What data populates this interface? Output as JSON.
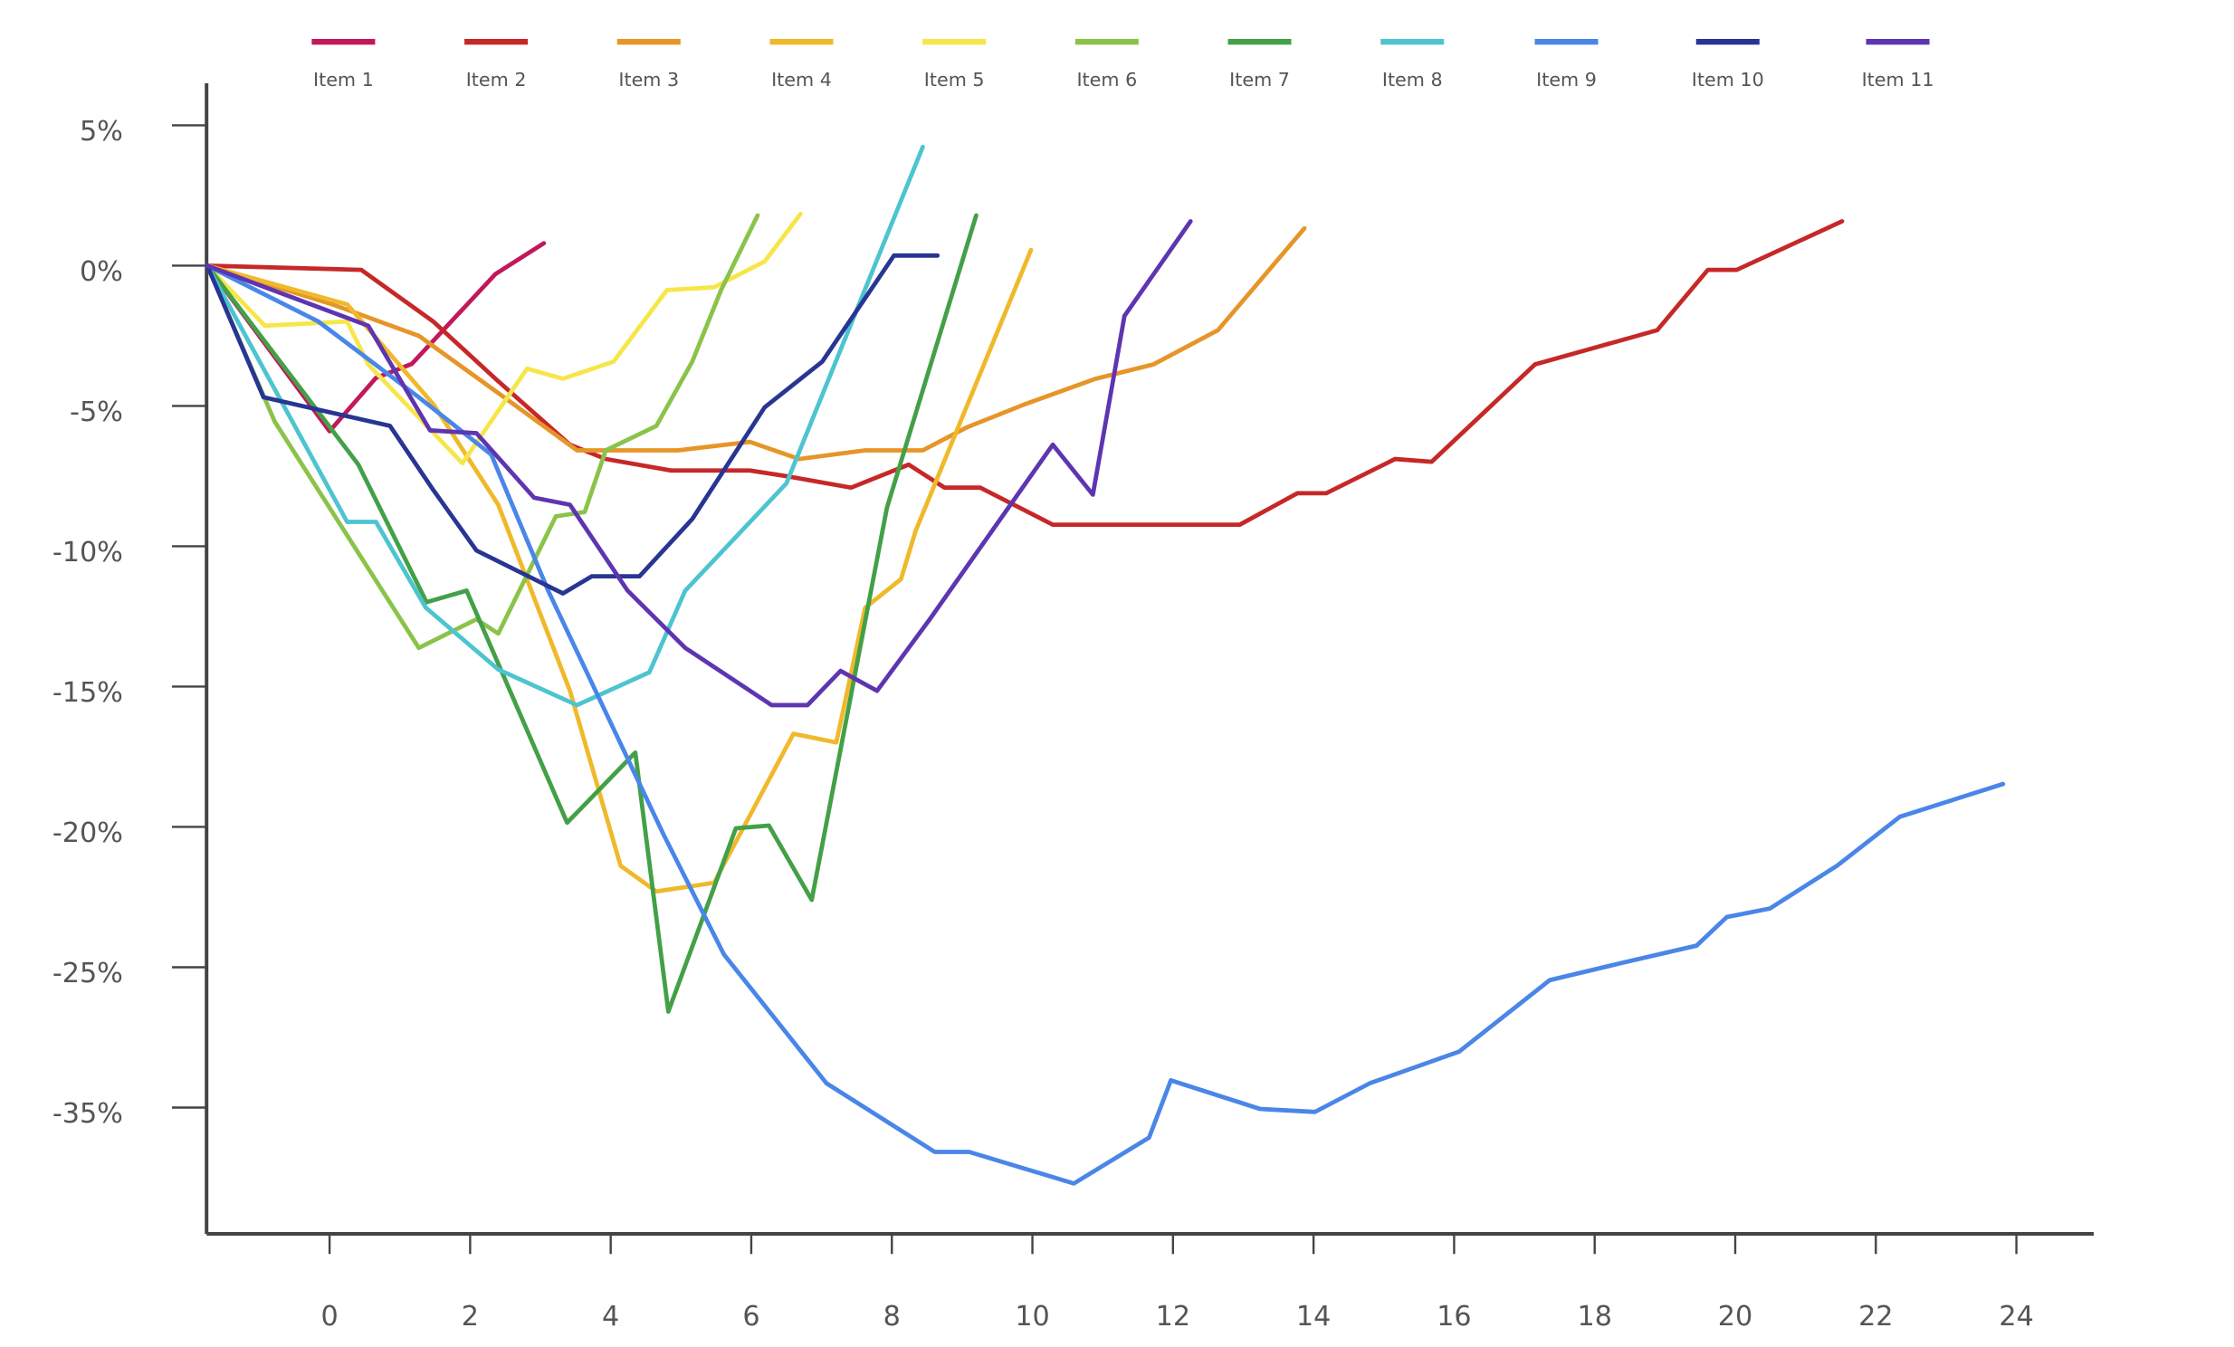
{
  "chart_data": {
    "type": "line",
    "xlim": [
      -1.75,
      25.1
    ],
    "xticks": [
      0,
      2,
      4,
      6,
      8,
      10,
      12,
      14,
      16,
      18,
      20,
      22,
      24
    ],
    "ylim": [
      -44,
      6.5
    ],
    "yticks": [
      {
        "value": 5,
        "label": "5%"
      },
      {
        "value": 0,
        "label": "0%"
      },
      {
        "value": -5,
        "label": "-5%"
      },
      {
        "value": -10,
        "label": "-10%"
      },
      {
        "value": -15,
        "label": "-15%"
      },
      {
        "value": -20,
        "label": "-20%"
      },
      {
        "value": -25,
        "label": "-25%"
      },
      {
        "value": -35,
        "label": "-35%"
      }
    ],
    "grid": false,
    "legend": "top",
    "series": [
      {
        "name": "Item 1",
        "color": "#c2185b",
        "x": [
          -1.74,
          0,
          0.66,
          1.17,
          2.36,
          3.05
        ],
        "values": [
          0,
          -5.9,
          -4.0,
          -3.5,
          -0.3,
          0.8
        ]
      },
      {
        "name": "Item 2",
        "color": "#c62828",
        "x": [
          -1.74,
          0.45,
          1.48,
          2.36,
          3.42,
          3.93,
          4.86,
          5.98,
          6.5,
          7.42,
          8.24,
          8.75,
          9.26,
          10.29,
          12.95,
          13.77,
          14.18,
          15.16,
          15.68,
          17.15,
          18.89,
          19.61,
          20.02,
          21.52
        ],
        "values": [
          0,
          -0.15,
          -2.0,
          -4.03,
          -6.38,
          -6.89,
          -7.3,
          -7.3,
          -7.5,
          -7.91,
          -7.09,
          -7.91,
          -7.91,
          -9.23,
          -9.23,
          -8.11,
          -8.11,
          -6.89,
          -6.99,
          -3.52,
          -2.3,
          -0.15,
          -0.15,
          1.58
        ]
      },
      {
        "name": "Item 3",
        "color": "#e69528",
        "x": [
          -1.74,
          0.04,
          1.27,
          2.4,
          3.52,
          4.96,
          5.98,
          6.68,
          7.62,
          8.44,
          9.06,
          9.88,
          10.9,
          11.72,
          12.64,
          13.87
        ],
        "values": [
          0,
          -1.38,
          -2.5,
          -4.54,
          -6.58,
          -6.58,
          -6.28,
          -6.89,
          -6.58,
          -6.58,
          -5.77,
          -4.95,
          -4.03,
          -3.52,
          -2.3,
          1.33
        ]
      },
      {
        "name": "Item 4",
        "color": "#f0b92b",
        "x": [
          -1.74,
          0.25,
          1.48,
          2.4,
          3.42,
          4.14,
          4.65,
          5.47,
          6.6,
          7.21,
          7.62,
          8.13,
          8.34,
          9.98
        ],
        "values": [
          0,
          -1.38,
          -4.95,
          -8.52,
          -15.15,
          -21.38,
          -22.3,
          -21.99,
          -16.68,
          -16.99,
          -12.19,
          -11.17,
          -9.44,
          0.56
        ]
      },
      {
        "name": "Item 5",
        "color": "#f7e64a",
        "x": [
          -1.74,
          -0.92,
          0.25,
          0.55,
          1.89,
          2.81,
          3.32,
          4.04,
          4.8,
          5.47,
          6.19,
          6.7
        ],
        "values": [
          0,
          -2.14,
          -1.99,
          -3.52,
          -7.04,
          -3.67,
          -4.03,
          -3.42,
          -0.87,
          -0.77,
          0.15,
          1.84
        ]
      },
      {
        "name": "Item 6",
        "color": "#8bc34a",
        "x": [
          -1.74,
          -0.78,
          1.27,
          2.09,
          2.4,
          3.22,
          3.63,
          3.93,
          4.65,
          5.16,
          5.57,
          6.09
        ],
        "values": [
          0,
          -5.56,
          -13.62,
          -12.6,
          -13.11,
          -8.93,
          -8.78,
          -6.58,
          -5.71,
          -3.42,
          -0.87,
          1.79
        ]
      },
      {
        "name": "Item 7",
        "color": "#43a047",
        "x": [
          -1.74,
          0.41,
          1.38,
          1.95,
          3.38,
          4.35,
          4.82,
          5.78,
          6.25,
          6.86,
          7.93,
          9.2
        ],
        "values": [
          0,
          -7.09,
          -11.99,
          -11.58,
          -19.85,
          -17.35,
          -28.16,
          -20.05,
          -19.95,
          -22.6,
          -8.63,
          1.79
        ]
      },
      {
        "name": "Item 8",
        "color": "#4dc4d0",
        "x": [
          -1.74,
          0.25,
          0.66,
          1.37,
          2.4,
          3.52,
          4.55,
          5.06,
          6.5,
          8.44
        ],
        "values": [
          0,
          -9.13,
          -9.13,
          -12.19,
          -14.39,
          -15.66,
          -14.49,
          -11.58,
          -7.76,
          4.23
        ]
      },
      {
        "name": "Item 9",
        "color": "#4a86e8",
        "x": [
          -1.74,
          -0.16,
          1.27,
          2.3,
          3.11,
          3.93,
          4.75,
          5.61,
          7.07,
          8.61,
          9.1,
          10.59,
          11.66,
          11.97,
          13.24,
          14.02,
          14.8,
          16.07,
          17.36,
          18.38,
          19.45,
          19.88,
          20.49,
          21.45,
          22.34,
          23.81
        ],
        "values": [
          0,
          -1.99,
          -4.69,
          -6.73,
          -11.58,
          -15.92,
          -20.26,
          -24.54,
          -33.27,
          -38.16,
          -38.16,
          -40.41,
          -37.14,
          -33.06,
          -35.1,
          -35.31,
          -33.27,
          -31.02,
          -25.92,
          -24.85,
          -24.23,
          -23.21,
          -22.91,
          -21.38,
          -19.64,
          -18.47
        ]
      },
      {
        "name": "Item 10",
        "color": "#283593",
        "x": [
          -1.74,
          -0.94,
          0.86,
          1.48,
          2.09,
          3.32,
          3.73,
          4.41,
          5.16,
          6.19,
          7.01,
          8.03,
          8.65
        ],
        "values": [
          0,
          -4.69,
          -5.71,
          -8.01,
          -10.15,
          -11.68,
          -11.07,
          -11.07,
          -9.03,
          -5.05,
          -3.42,
          0.36,
          0.36
        ]
      },
      {
        "name": "Item 11",
        "color": "#5e35b1",
        "x": [
          -1.74,
          0.55,
          1.43,
          2.09,
          2.91,
          3.42,
          4.24,
          5.06,
          6.29,
          6.8,
          7.27,
          7.79,
          8.54,
          10.29,
          10.86,
          11.31,
          12.25
        ],
        "values": [
          0,
          -2.14,
          -5.87,
          -5.97,
          -8.27,
          -8.52,
          -11.58,
          -13.62,
          -15.66,
          -15.66,
          -14.44,
          -15.15,
          -12.6,
          -6.38,
          -8.16,
          -1.79,
          1.58
        ]
      }
    ]
  }
}
